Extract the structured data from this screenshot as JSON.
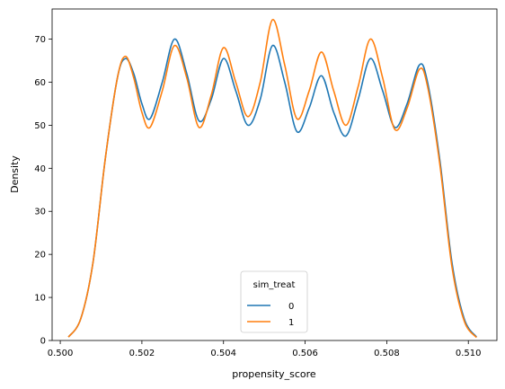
{
  "chart_data": {
    "type": "line",
    "title": "",
    "xlabel": "propensity_score",
    "ylabel": "Density",
    "xlim": [
      0.4998,
      0.5107
    ],
    "ylim": [
      0,
      77
    ],
    "xticks": [
      "0.500",
      "0.502",
      "0.504",
      "0.506",
      "0.508",
      "0.510"
    ],
    "xtick_values": [
      0.5,
      0.502,
      0.504,
      0.506,
      0.508,
      0.51
    ],
    "yticks": [
      "0",
      "10",
      "20",
      "30",
      "40",
      "50",
      "60",
      "70"
    ],
    "ytick_values": [
      0,
      10,
      20,
      30,
      40,
      50,
      60,
      70
    ],
    "grid": false,
    "legend": {
      "title": "sim_treat",
      "placement": "lower center"
    },
    "series": [
      {
        "name": "0",
        "color": "#1f77b4",
        "x": [
          0.5002,
          0.5005,
          0.5008,
          0.5011,
          0.5014,
          0.5016,
          0.5018,
          0.502,
          0.5022,
          0.5025,
          0.5028,
          0.5031,
          0.5034,
          0.5037,
          0.504,
          0.5043,
          0.5046,
          0.5049,
          0.5052,
          0.5055,
          0.5058,
          0.5061,
          0.5064,
          0.5067,
          0.507,
          0.5073,
          0.5076,
          0.5079,
          0.5082,
          0.5085,
          0.5088,
          0.509,
          0.5093,
          0.5096,
          0.5099,
          0.5102
        ],
        "y": [
          0.8,
          5,
          18,
          42,
          61,
          65.5,
          62,
          55,
          51.5,
          60,
          70,
          62,
          51,
          56,
          65.5,
          58,
          50,
          56,
          68.5,
          60,
          48.5,
          54,
          61.5,
          53,
          47.5,
          56,
          65.5,
          58,
          49.5,
          55,
          64,
          60,
          42,
          18,
          5,
          0.8
        ]
      },
      {
        "name": "1",
        "color": "#ff7f0e",
        "x": [
          0.5002,
          0.5005,
          0.5008,
          0.5011,
          0.5014,
          0.5016,
          0.5018,
          0.502,
          0.5022,
          0.5025,
          0.5028,
          0.5031,
          0.5034,
          0.5037,
          0.504,
          0.5043,
          0.5046,
          0.5049,
          0.5052,
          0.5055,
          0.5058,
          0.5061,
          0.5064,
          0.5067,
          0.507,
          0.5073,
          0.5076,
          0.5079,
          0.5082,
          0.5085,
          0.5088,
          0.509,
          0.5093,
          0.5096,
          0.5099,
          0.5102
        ],
        "y": [
          0.8,
          5,
          18,
          42,
          61,
          66,
          61,
          53,
          49.5,
          58,
          68.5,
          61,
          49.5,
          57,
          68,
          60,
          52,
          60,
          74.5,
          64,
          51.5,
          58,
          67,
          58,
          50,
          59,
          70,
          61,
          49,
          54,
          63,
          59,
          41,
          17,
          4.5,
          0.7
        ]
      }
    ]
  }
}
